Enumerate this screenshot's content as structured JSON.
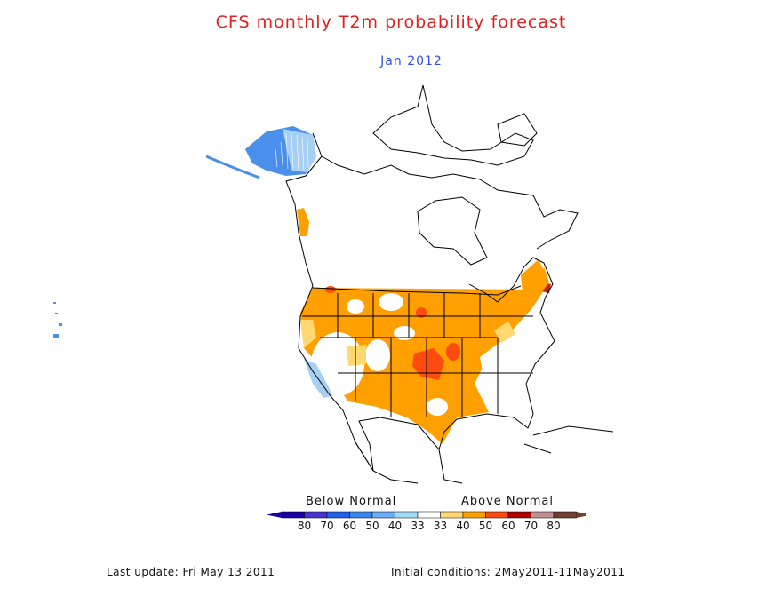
{
  "title": "CFS monthly T2m probability forecast",
  "subtitle": "Jan 2012",
  "legend": {
    "below_label": "Below Normal",
    "above_label": "Above Normal",
    "ticks": [
      "80",
      "70",
      "60",
      "50",
      "40",
      "33",
      "33",
      "40",
      "50",
      "60",
      "70",
      "80"
    ],
    "colors": [
      "#1a00a8",
      "#4a32d0",
      "#2060e8",
      "#3a86f0",
      "#6aaef8",
      "#a0dcf8",
      "#ffffff",
      "#ffd870",
      "#ffa000",
      "#ff4a10",
      "#b00000",
      "#c09090",
      "#704030"
    ]
  },
  "footer": {
    "last_update": "Last update: Fri May 13 2011",
    "initial_conditions": "Initial conditions: 2May2011-11May2011"
  }
}
